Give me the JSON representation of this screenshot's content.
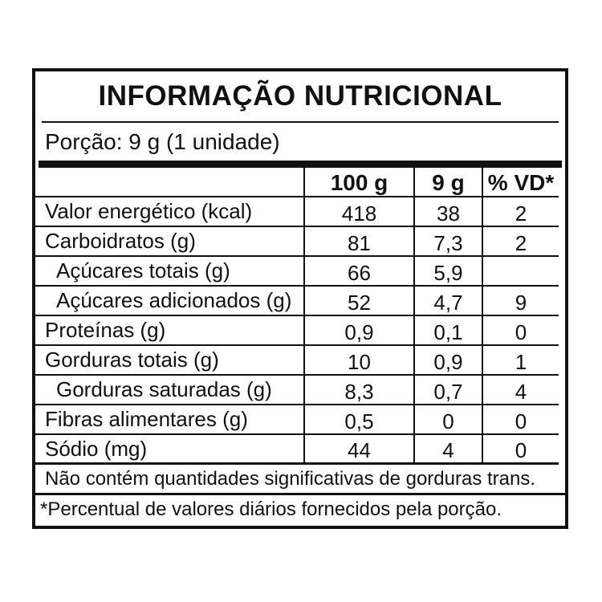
{
  "label": {
    "title": "INFORMAÇÃO NUTRICIONAL",
    "serving": "Porção: 9 g (1 unidade)",
    "table": {
      "columns": [
        "",
        "100 g",
        "9 g",
        "% VD*"
      ],
      "rows": [
        {
          "name": "Valor energético (kcal)",
          "per100": "418",
          "perServing": "38",
          "vd": "2",
          "indent": false
        },
        {
          "name": "Carboidratos (g)",
          "per100": "81",
          "perServing": "7,3",
          "vd": "2",
          "indent": false
        },
        {
          "name": "Açúcares totais (g)",
          "per100": "66",
          "perServing": "5,9",
          "vd": "",
          "indent": true
        },
        {
          "name": "Açúcares adicionados (g)",
          "per100": "52",
          "perServing": "4,7",
          "vd": "9",
          "indent": true
        },
        {
          "name": "Proteínas (g)",
          "per100": "0,9",
          "perServing": "0,1",
          "vd": "0",
          "indent": false
        },
        {
          "name": "Gorduras totais (g)",
          "per100": "10",
          "perServing": "0,9",
          "vd": "1",
          "indent": false
        },
        {
          "name": "Gorduras saturadas (g)",
          "per100": "8,3",
          "perServing": "0,7",
          "vd": "4",
          "indent": true
        },
        {
          "name": "Fibras alimentares (g)",
          "per100": "0,5",
          "perServing": "0",
          "vd": "0",
          "indent": false
        },
        {
          "name": "Sódio (mg)",
          "per100": "44",
          "perServing": "4",
          "vd": "0",
          "indent": false
        }
      ]
    },
    "notes": {
      "trans": "Não contém quantidades significativas de gorduras trans.",
      "daily": "*Percentual de valores diários fornecidos pela porção."
    },
    "colors": {
      "ink": "#111111",
      "background": "#ffffff"
    }
  }
}
